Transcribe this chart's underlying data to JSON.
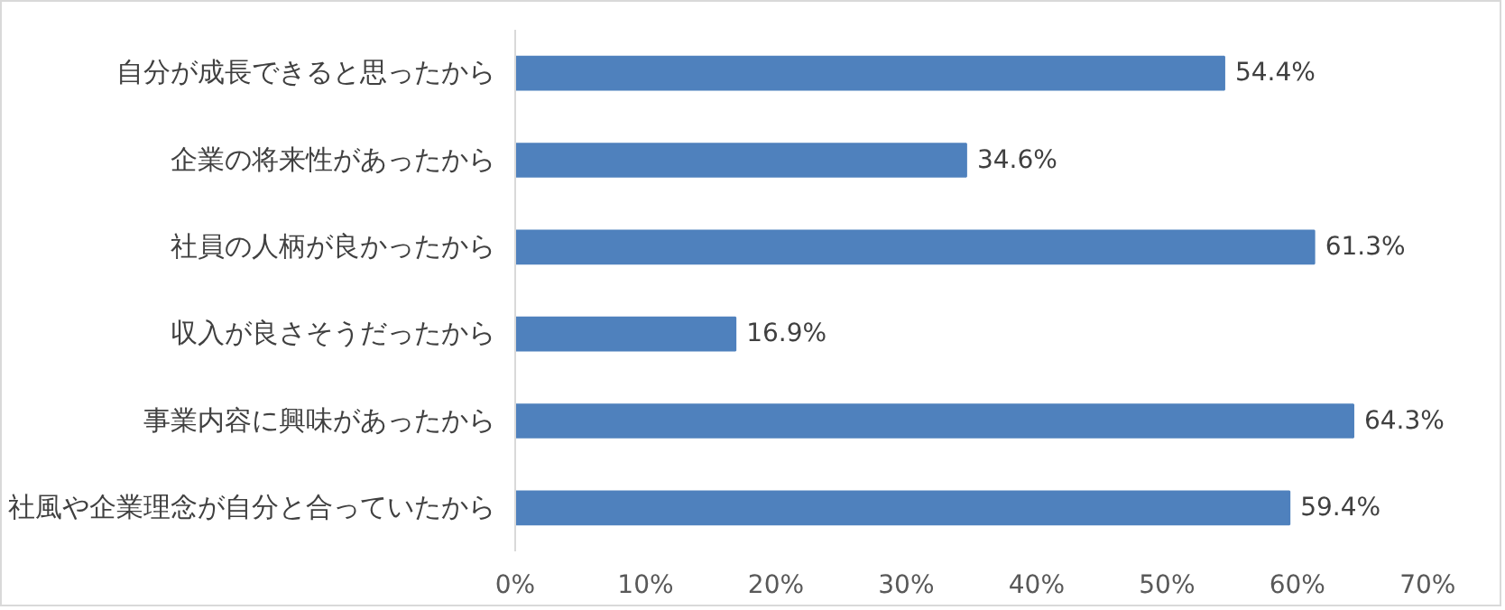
{
  "chart_data": {
    "type": "bar",
    "orientation": "horizontal",
    "categories": [
      "自分が成長できると思ったから",
      "企業の将来性があったから",
      "社員の人柄が良かったから",
      "収入が良さそうだったから",
      "事業内容に興味があったから",
      "社風や企業理念が自分と合っていたから"
    ],
    "values": [
      54.4,
      34.6,
      61.3,
      16.9,
      64.3,
      59.4
    ],
    "color": "#4f81bd",
    "value_labels": [
      "54.4%",
      "34.6%",
      "61.3%",
      "16.9%",
      "64.3%",
      "59.4%"
    ],
    "xlim": [
      0,
      70
    ],
    "xticks": [
      {
        "value": 0,
        "label": "0%"
      },
      {
        "value": 10,
        "label": "10%"
      },
      {
        "value": 20,
        "label": "20%"
      },
      {
        "value": 30,
        "label": "30%"
      },
      {
        "value": 40,
        "label": "40%"
      },
      {
        "value": 50,
        "label": "50%"
      },
      {
        "value": 60,
        "label": "60%"
      },
      {
        "value": 70,
        "label": "70%"
      }
    ],
    "grid": false
  }
}
